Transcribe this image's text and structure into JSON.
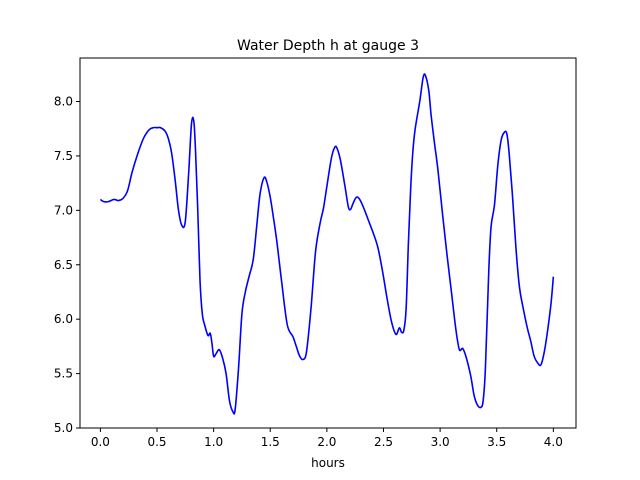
{
  "chart_data": {
    "type": "line",
    "title": "Water Depth h at gauge 3",
    "xlabel": "hours",
    "ylabel": "",
    "xlim": [
      -0.18,
      4.2
    ],
    "ylim": [
      5.0,
      8.4
    ],
    "xticks": [
      0.0,
      0.5,
      1.0,
      1.5,
      2.0,
      2.5,
      3.0,
      3.5,
      4.0
    ],
    "xtick_labels": [
      "0.0",
      "0.5",
      "1.0",
      "1.5",
      "2.0",
      "2.5",
      "3.0",
      "3.5",
      "4.0"
    ],
    "yticks": [
      5.0,
      5.5,
      6.0,
      6.5,
      7.0,
      7.5,
      8.0
    ],
    "ytick_labels": [
      "5.0",
      "5.5",
      "6.0",
      "6.5",
      "7.0",
      "7.5",
      "8.0"
    ],
    "grid": false,
    "line_color": "#0000ff",
    "series": [
      {
        "name": "",
        "x": [
          0.0,
          0.03,
          0.07,
          0.12,
          0.16,
          0.2,
          0.24,
          0.28,
          0.33,
          0.38,
          0.43,
          0.47,
          0.5,
          0.53,
          0.57,
          0.6,
          0.63,
          0.66,
          0.69,
          0.72,
          0.75,
          0.78,
          0.805,
          0.825,
          0.84,
          0.86,
          0.88,
          0.9,
          0.92,
          0.95,
          0.97,
          0.985,
          1.0,
          1.02,
          1.05,
          1.08,
          1.11,
          1.14,
          1.17,
          1.19,
          1.22,
          1.25,
          1.28,
          1.31,
          1.35,
          1.38,
          1.41,
          1.445,
          1.47,
          1.5,
          1.53,
          1.56,
          1.6,
          1.65,
          1.7,
          1.73,
          1.76,
          1.79,
          1.82,
          1.86,
          1.9,
          1.94,
          1.97,
          2.0,
          2.04,
          2.07,
          2.09,
          2.12,
          2.16,
          2.19,
          2.21,
          2.23,
          2.26,
          2.29,
          2.33,
          2.37,
          2.41,
          2.45,
          2.49,
          2.53,
          2.57,
          2.61,
          2.64,
          2.66,
          2.68,
          2.7,
          2.72,
          2.74,
          2.76,
          2.78,
          2.82,
          2.85,
          2.87,
          2.9,
          2.92,
          2.95,
          2.98,
          3.02,
          3.06,
          3.1,
          3.14,
          3.17,
          3.2,
          3.23,
          3.27,
          3.3,
          3.33,
          3.36,
          3.38,
          3.4,
          3.43,
          3.45,
          3.48,
          3.51,
          3.54,
          3.57,
          3.59,
          3.61,
          3.64,
          3.67,
          3.7,
          3.73,
          3.77,
          3.8,
          3.83,
          3.86,
          3.89,
          3.92,
          3.95,
          3.98,
          4.0
        ],
        "y": [
          7.1,
          7.08,
          7.08,
          7.1,
          7.09,
          7.11,
          7.18,
          7.35,
          7.52,
          7.66,
          7.74,
          7.76,
          7.76,
          7.76,
          7.73,
          7.66,
          7.52,
          7.28,
          7.0,
          6.86,
          6.9,
          7.35,
          7.8,
          7.82,
          7.55,
          7.0,
          6.35,
          6.05,
          5.95,
          5.85,
          5.87,
          5.78,
          5.66,
          5.68,
          5.72,
          5.64,
          5.5,
          5.25,
          5.15,
          5.17,
          5.55,
          6.05,
          6.25,
          6.38,
          6.55,
          6.85,
          7.15,
          7.3,
          7.26,
          7.12,
          6.92,
          6.7,
          6.35,
          5.95,
          5.84,
          5.75,
          5.66,
          5.63,
          5.7,
          6.1,
          6.62,
          6.88,
          7.02,
          7.22,
          7.48,
          7.58,
          7.57,
          7.46,
          7.22,
          7.03,
          7.01,
          7.06,
          7.12,
          7.1,
          7.01,
          6.9,
          6.79,
          6.66,
          6.45,
          6.2,
          5.98,
          5.86,
          5.92,
          5.88,
          5.9,
          6.1,
          6.7,
          7.2,
          7.55,
          7.75,
          8.0,
          8.22,
          8.24,
          8.1,
          7.88,
          7.62,
          7.38,
          6.98,
          6.6,
          6.25,
          5.9,
          5.72,
          5.73,
          5.65,
          5.48,
          5.3,
          5.21,
          5.19,
          5.25,
          5.55,
          6.45,
          6.85,
          7.05,
          7.42,
          7.65,
          7.72,
          7.7,
          7.52,
          7.12,
          6.65,
          6.3,
          6.12,
          5.92,
          5.8,
          5.66,
          5.6,
          5.58,
          5.7,
          5.9,
          6.15,
          6.39
        ]
      }
    ]
  }
}
